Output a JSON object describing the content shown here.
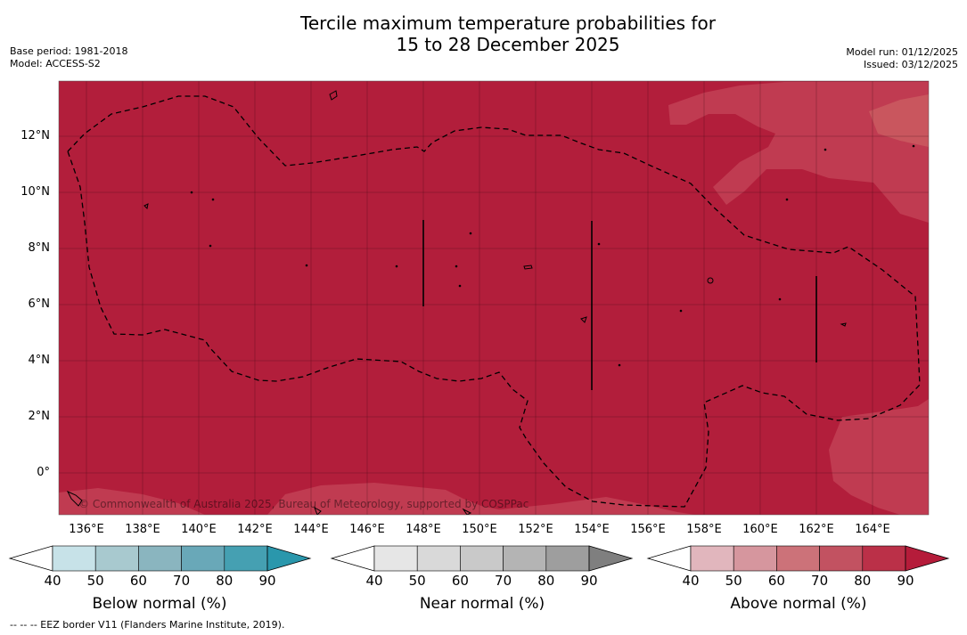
{
  "header": {
    "title_line1": "Tercile maximum temperature probabilities for",
    "title_line2": "15 to 28 December 2025",
    "base_period": "Base period: 1981-2018",
    "model": "Model: ACCESS-S2",
    "model_run": "Model run: 01/12/2025",
    "issued": "Issued: 03/12/2025"
  },
  "map": {
    "lat_labels": [
      "12°N",
      "10°N",
      "8°N",
      "6°N",
      "4°N",
      "2°N",
      "0°"
    ],
    "lon_labels": [
      "136°E",
      "138°E",
      "140°E",
      "142°E",
      "144°E",
      "146°E",
      "148°E",
      "150°E",
      "152°E",
      "154°E",
      "156°E",
      "158°E",
      "160°E",
      "162°E",
      "164°E"
    ],
    "credit": "© Commonwealth of Australia 2025, Bureau of Meteorology, supported by COSPPac",
    "colors": {
      "dominant": "#b21e3b",
      "lighter": "#c03b51",
      "lightest": "#c9565e"
    }
  },
  "legends": [
    {
      "label": "Below normal (%)",
      "ticks": [
        "40",
        "50",
        "60",
        "70",
        "80",
        "90"
      ],
      "colors": [
        "#ffffff",
        "#c7e2e8",
        "#a8c9cf",
        "#8ab5bf",
        "#69a8b8",
        "#45a0b2",
        "#2a97ac"
      ]
    },
    {
      "label": "Near normal (%)",
      "ticks": [
        "40",
        "50",
        "60",
        "70",
        "80",
        "90"
      ],
      "colors": [
        "#ffffff",
        "#e6e6e6",
        "#d9d9d9",
        "#c9c9c9",
        "#b4b4b4",
        "#9e9e9e",
        "#7f7f7f"
      ]
    },
    {
      "label": "Above normal (%)",
      "ticks": [
        "40",
        "50",
        "60",
        "70",
        "80",
        "90"
      ],
      "colors": [
        "#ffffff",
        "#e1b6bd",
        "#d6969e",
        "#cc7279",
        "#c25261",
        "#bb3048",
        "#b51c3a"
      ]
    }
  ],
  "footnote": "--  --  -- EEZ border V11 (Flanders Marine Institute, 2019)."
}
